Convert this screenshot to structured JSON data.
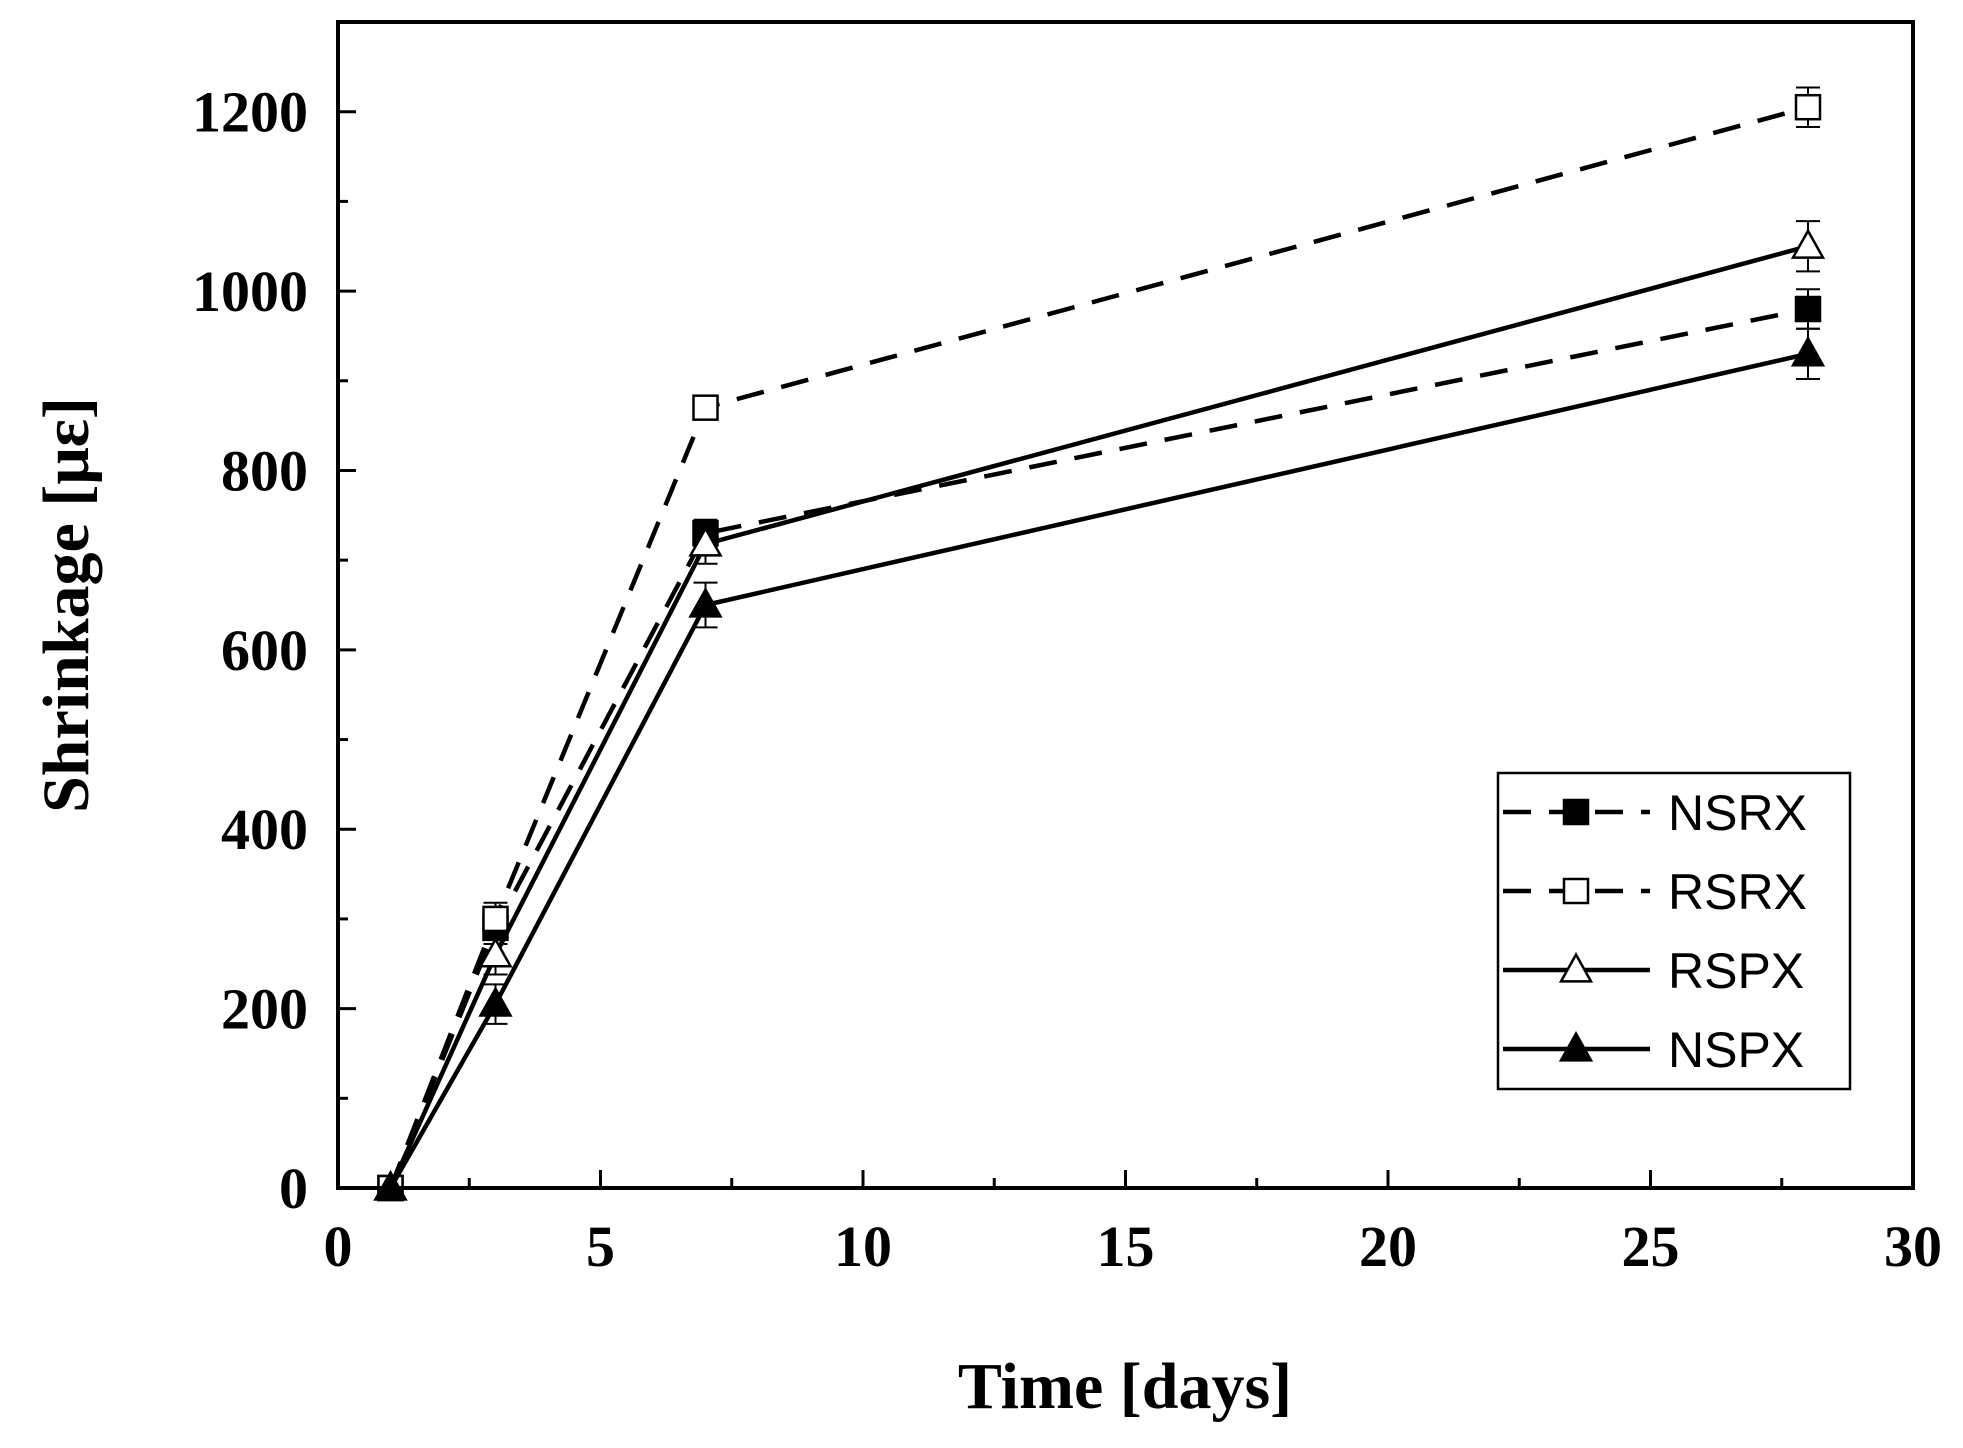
{
  "chart_data": {
    "type": "line",
    "title": "",
    "xlabel": "Time [days]",
    "ylabel": "Shrinkage [με]",
    "xlim": [
      0,
      30
    ],
    "ylim": [
      0,
      1300
    ],
    "x_ticks": [
      0,
      5,
      10,
      15,
      20,
      25,
      30
    ],
    "y_ticks": [
      0,
      200,
      400,
      600,
      800,
      1000,
      1200
    ],
    "x_tick_labels": [
      "0",
      "5",
      "10",
      "15",
      "20",
      "25",
      "30"
    ],
    "y_tick_labels": [
      "0",
      "200",
      "400",
      "600",
      "800",
      "1000",
      "1200"
    ],
    "grid": false,
    "legend_position": "bottom-right",
    "x": [
      1,
      3,
      7,
      28
    ],
    "series": [
      {
        "name": "NSRX",
        "values": [
          0,
          290,
          730,
          980
        ],
        "errors": [
          0,
          18,
          15,
          22
        ],
        "line": "dashed",
        "marker": "square",
        "filled": true
      },
      {
        "name": "RSRX",
        "values": [
          0,
          300,
          870,
          1205
        ],
        "errors": [
          0,
          18,
          8,
          22
        ],
        "line": "dashed",
        "marker": "square",
        "filled": false
      },
      {
        "name": "RSPX",
        "values": [
          0,
          260,
          718,
          1050
        ],
        "errors": [
          0,
          22,
          22,
          28
        ],
        "line": "solid",
        "marker": "triangle",
        "filled": false
      },
      {
        "name": "NSPX",
        "values": [
          0,
          205,
          650,
          930
        ],
        "errors": [
          0,
          22,
          25,
          28
        ],
        "line": "solid",
        "marker": "triangle",
        "filled": true
      }
    ]
  }
}
